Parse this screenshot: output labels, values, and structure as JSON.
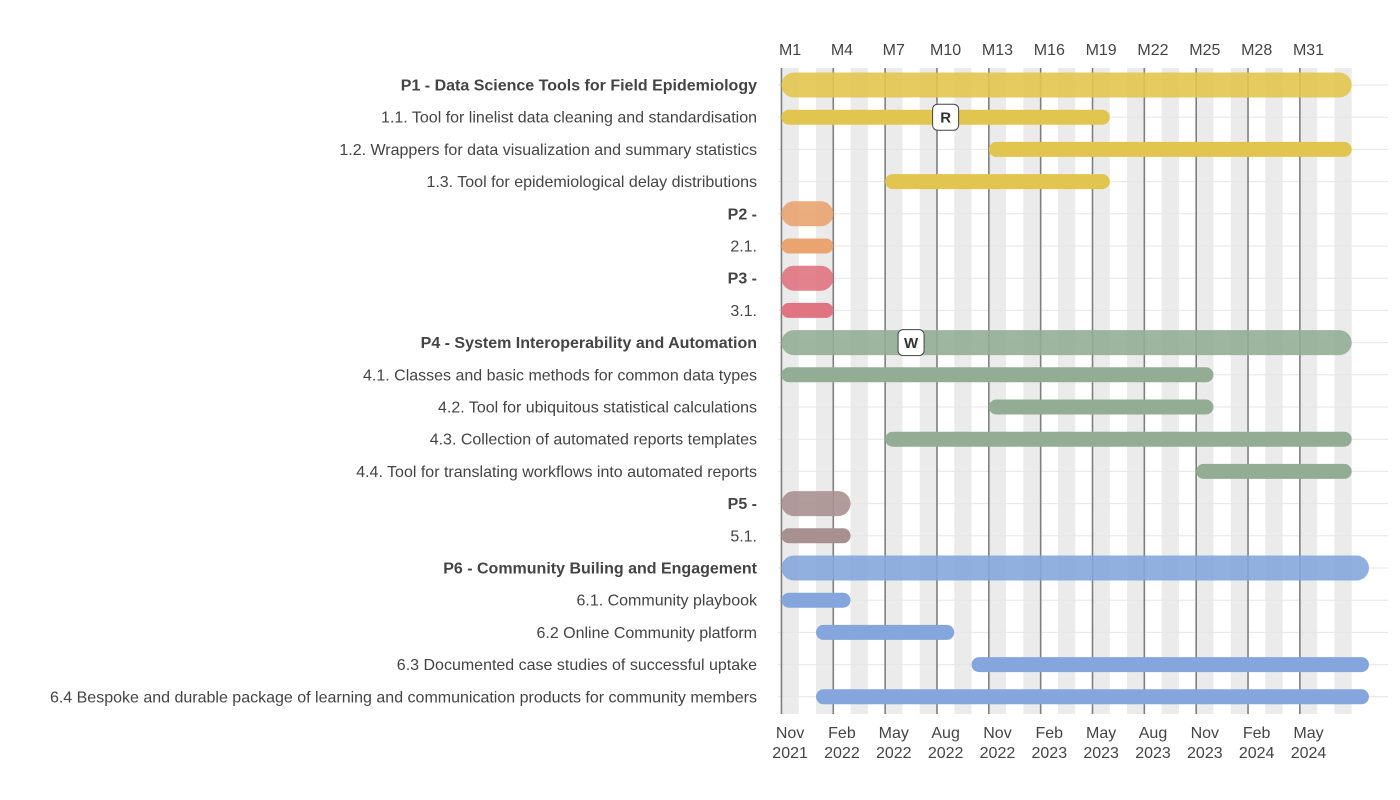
{
  "chart_data": {
    "type": "gantt",
    "x_unit": "month",
    "xlim": [
      0.3,
      35.6
    ],
    "top_ticks": [
      {
        "m": 1,
        "label": "M1"
      },
      {
        "m": 4,
        "label": "M4"
      },
      {
        "m": 7,
        "label": "M7"
      },
      {
        "m": 10,
        "label": "M10"
      },
      {
        "m": 13,
        "label": "M13"
      },
      {
        "m": 16,
        "label": "M16"
      },
      {
        "m": 19,
        "label": "M19"
      },
      {
        "m": 22,
        "label": "M22"
      },
      {
        "m": 25,
        "label": "M25"
      },
      {
        "m": 28,
        "label": "M28"
      },
      {
        "m": 31,
        "label": "M31"
      }
    ],
    "bottom_ticks": [
      {
        "m": 1,
        "line1": "Nov",
        "line2": "2021"
      },
      {
        "m": 4,
        "line1": "Feb",
        "line2": "2022"
      },
      {
        "m": 7,
        "line1": "May",
        "line2": "2022"
      },
      {
        "m": 10,
        "line1": "Aug",
        "line2": "2022"
      },
      {
        "m": 13,
        "line1": "Nov",
        "line2": "2022"
      },
      {
        "m": 16,
        "line1": "Feb",
        "line2": "2023"
      },
      {
        "m": 19,
        "line1": "May",
        "line2": "2023"
      },
      {
        "m": 22,
        "line1": "Aug",
        "line2": "2023"
      },
      {
        "m": 25,
        "line1": "Nov",
        "line2": "2023"
      },
      {
        "m": 28,
        "line1": "Feb",
        "line2": "2024"
      },
      {
        "m": 31,
        "line1": "May",
        "line2": "2024"
      }
    ],
    "quarter_lines": [
      0.5,
      3.5,
      6.5,
      9.5,
      12.5,
      15.5,
      18.5,
      21.5,
      24.5,
      27.5,
      30.5
    ],
    "tasks": [
      {
        "label": "P1 - Data Science Tools for Field Epidemiology",
        "start": 1,
        "end": 33.5,
        "group": "P1",
        "is_package": true
      },
      {
        "label": "1.1. Tool for linelist data cleaning and standardisation",
        "start": 1,
        "end": 19.5,
        "group": "P1",
        "is_package": false
      },
      {
        "label": "1.2. Wrappers for data visualization and summary statistics",
        "start": 13,
        "end": 33.5,
        "group": "P1",
        "is_package": false
      },
      {
        "label": "1.3. Tool for epidemiological delay distributions",
        "start": 7,
        "end": 19.5,
        "group": "P1",
        "is_package": false
      },
      {
        "label": "P2 -",
        "start": 1,
        "end": 3.5,
        "group": "P2",
        "is_package": true
      },
      {
        "label": "2.1.",
        "start": 1,
        "end": 3.5,
        "group": "P2",
        "is_package": false
      },
      {
        "label": "P3 -",
        "start": 1,
        "end": 3.5,
        "group": "P3",
        "is_package": true
      },
      {
        "label": "3.1.",
        "start": 1,
        "end": 3.5,
        "group": "P3",
        "is_package": false
      },
      {
        "label": "P4 - System Interoperability and Automation",
        "start": 1,
        "end": 33.5,
        "group": "P4",
        "is_package": true
      },
      {
        "label": "4.1. Classes and basic methods for common data types",
        "start": 1,
        "end": 25.5,
        "group": "P4",
        "is_package": false
      },
      {
        "label": "4.2. Tool for ubiquitous statistical calculations",
        "start": 13,
        "end": 25.5,
        "group": "P4",
        "is_package": false
      },
      {
        "label": "4.3. Collection of automated reports templates",
        "start": 7,
        "end": 33.5,
        "group": "P4",
        "is_package": false
      },
      {
        "label": "4.4. Tool for translating workflows into automated reports",
        "start": 25,
        "end": 33.5,
        "group": "P4",
        "is_package": false
      },
      {
        "label": "P5 -",
        "start": 1,
        "end": 4.5,
        "group": "P5",
        "is_package": true
      },
      {
        "label": "5.1.",
        "start": 1,
        "end": 4.5,
        "group": "P5",
        "is_package": false
      },
      {
        "label": "P6 - Community Builing and Engagement",
        "start": 1,
        "end": 34.5,
        "group": "P6",
        "is_package": true
      },
      {
        "label": "6.1. Community playbook",
        "start": 1,
        "end": 4.5,
        "group": "P6",
        "is_package": false
      },
      {
        "label": "6.2 Online Community platform",
        "start": 3,
        "end": 10.5,
        "group": "P6",
        "is_package": false
      },
      {
        "label": "6.3 Documented case studies of successful uptake",
        "start": 12,
        "end": 34.5,
        "group": "P6",
        "is_package": false
      },
      {
        "label": "6.4 Bespoke and durable package of learning and communication products for community members",
        "start": 3,
        "end": 34.5,
        "group": "P6",
        "is_package": false
      }
    ],
    "milestones": [
      {
        "label": "R",
        "row": 1,
        "m": 10
      },
      {
        "label": "W",
        "row": 8,
        "m": 8
      }
    ],
    "colors": {
      "P1": "#e2c54f",
      "P2": "#e9a470",
      "P3": "#e07480",
      "P4": "#93ad95",
      "P5": "#a89090",
      "P6": "#85a6dc",
      "band": "#ebebeb",
      "quarter_line": "#7f7f7f",
      "grid": "#e6e6e6"
    }
  }
}
